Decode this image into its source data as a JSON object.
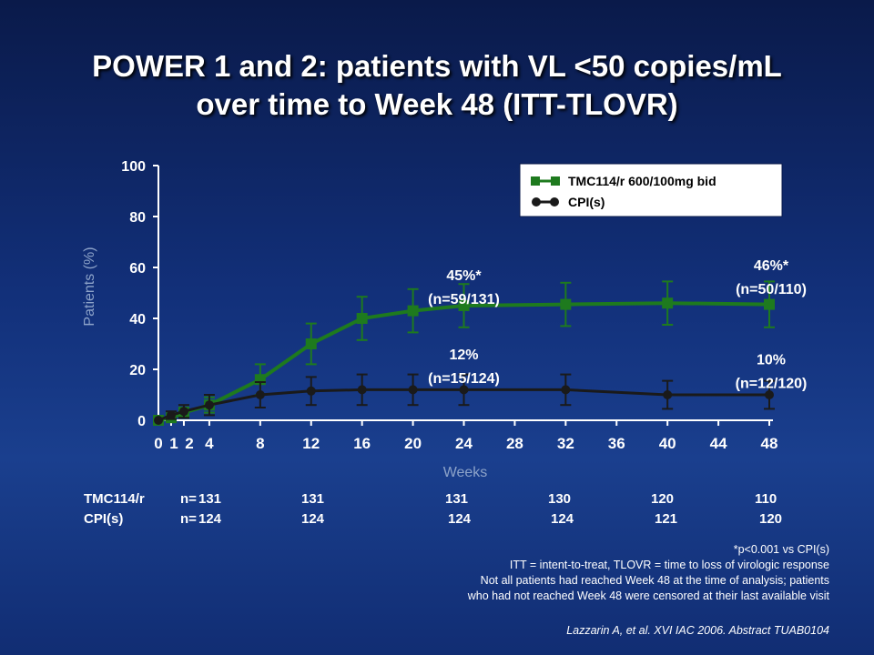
{
  "title": {
    "line1": "POWER 1 and 2: patients with VL <50 copies/mL",
    "line2": "over time to Week 48 (ITT-TLOVR)"
  },
  "chart_data": {
    "type": "line",
    "xlabel": "Weeks",
    "ylabel": "Patients (%)",
    "xlim": [
      0,
      48
    ],
    "ylim": [
      0,
      100
    ],
    "x_ticks": [
      "0",
      "1",
      "2",
      "4",
      "8",
      "12",
      "16",
      "20",
      "24",
      "28",
      "32",
      "36",
      "40",
      "44",
      "48"
    ],
    "x_tick_values": [
      0,
      1,
      2,
      4,
      8,
      12,
      16,
      20,
      24,
      28,
      32,
      36,
      40,
      44,
      48
    ],
    "y_ticks": [
      "0",
      "20",
      "40",
      "60",
      "80",
      "100"
    ],
    "y_tick_values": [
      0,
      20,
      40,
      60,
      80,
      100
    ],
    "legend_position": "top-right",
    "series": [
      {
        "name": "TMC114/r 600/100mg bid",
        "color": "#1e7a1e",
        "marker": "square",
        "x": [
          0,
          1,
          2,
          4,
          8,
          12,
          16,
          20,
          24,
          32,
          40,
          48
        ],
        "y": [
          0,
          1,
          3,
          6,
          16,
          30,
          40,
          43,
          45,
          45.5,
          46,
          45.5
        ],
        "err": [
          0,
          1,
          2,
          3,
          6,
          8,
          8.5,
          8.5,
          8.5,
          8.5,
          8.5,
          9
        ]
      },
      {
        "name": "CPI(s)",
        "color": "#1a1a1a",
        "marker": "circle",
        "x": [
          0,
          1,
          2,
          4,
          8,
          12,
          16,
          20,
          24,
          32,
          40,
          48
        ],
        "y": [
          0,
          2,
          3.5,
          6,
          10,
          11.5,
          12,
          12,
          12,
          12,
          10,
          10
        ],
        "err": [
          0,
          1.5,
          2.5,
          4,
          5,
          5.5,
          6,
          6,
          6,
          6,
          5.5,
          5.5
        ]
      }
    ],
    "annotations": [
      {
        "lines": [
          "45%*",
          "(n=59/131)"
        ],
        "at": [
          24,
          55
        ]
      },
      {
        "lines": [
          "12%",
          "(n=15/124)"
        ],
        "at": [
          24,
          24
        ]
      },
      {
        "lines": [
          "46%*",
          "(n=50/110)"
        ],
        "at": [
          48,
          59
        ]
      },
      {
        "lines": [
          "10%",
          "(n=12/120)"
        ],
        "at": [
          48,
          22
        ]
      }
    ]
  },
  "n_table": {
    "rows": [
      {
        "label": "TMC114/r",
        "prefix": "n=",
        "values": [
          "131",
          "131",
          "131",
          "130",
          "120",
          "110"
        ]
      },
      {
        "label": "CPI(s)",
        "prefix": "n=",
        "values": [
          "124",
          "124",
          "124",
          "124",
          "121",
          "120"
        ]
      }
    ]
  },
  "notes": [
    "*p<0.001 vs CPI(s)",
    "ITT = intent-to-treat, TLOVR = time to loss of virologic response",
    "Not all patients had reached Week 48 at the time of analysis; patients",
    "who had not reached Week 48 were censored at their last available visit"
  ],
  "citation": "Lazzarin A, et al. XVI IAC 2006. Abstract TUAB0104"
}
